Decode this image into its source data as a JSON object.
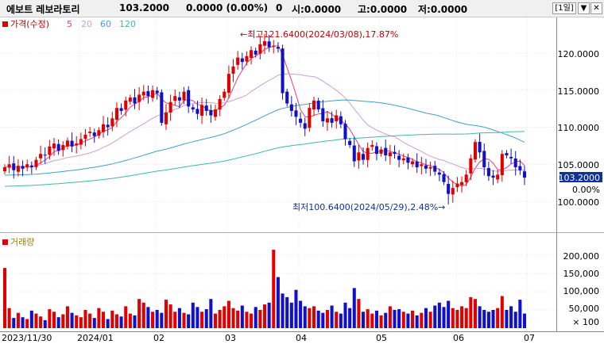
{
  "header": {
    "name": "에보트 레보라토리",
    "price": "103.2000",
    "change": "0.0000 (0.00%)",
    "volume": "0",
    "open": "시:0.0000",
    "high": "고:0.0000",
    "low": "저:0.0000",
    "period_button": "[1일]",
    "minimize_label": "▼",
    "close_label": "✕"
  },
  "legend": {
    "price_label": "가격(수정)",
    "ma": [
      {
        "label": "5",
        "color": "#e0407a"
      },
      {
        "label": "20",
        "color": "#c8a0d8"
      },
      {
        "label": "60",
        "color": "#40a0c8"
      },
      {
        "label": "120",
        "color": "#40b8a8"
      }
    ],
    "volume_label": "거래량"
  },
  "colors": {
    "up": "#e00000",
    "down": "#1010c8",
    "highlight": "#1030a0"
  },
  "annotations": {
    "max": "←최고121.6400(2024/03/08),17.87%",
    "min": "최저100.6400(2024/05/29),2.48%→"
  },
  "price_axis": {
    "ticks": [
      "120.0000",
      "115.0000",
      "110.0000",
      "105.0000",
      "100.0000"
    ]
  },
  "volume_axis": {
    "ticks": [
      "200,000",
      "150,000",
      "100,000",
      "50,000"
    ],
    "unit": "× 100"
  },
  "last_price_box": {
    "price": "103.2000",
    "percent": "0.00%"
  },
  "x_axis": {
    "labels": [
      "2023/11/30",
      "2024/01",
      "02",
      "03",
      "04",
      "05",
      "06",
      "07"
    ]
  },
  "chart_data": {
    "type": "candlestick",
    "period": "daily",
    "price_range": [
      96,
      124
    ],
    "volume_range": [
      0,
      240000
    ],
    "volume_unit": "x100",
    "moving_averages": [
      5,
      20,
      60,
      120
    ],
    "highest": {
      "value": 121.64,
      "date": "2024/03/08",
      "pct": 17.87
    },
    "lowest": {
      "value": 100.64,
      "date": "2024/05/29",
      "pct": 2.48
    },
    "last": 103.2,
    "close_series": [
      104.6,
      105.0,
      104.2,
      104.8,
      104.4,
      105.0,
      104.6,
      105.6,
      106.4,
      106.2,
      107.4,
      107.8,
      106.8,
      107.6,
      108.2,
      107.4,
      107.8,
      108.4,
      109.0,
      109.4,
      108.8,
      109.6,
      110.4,
      110.0,
      111.2,
      112.6,
      112.2,
      113.6,
      114.0,
      113.2,
      114.4,
      114.8,
      114.2,
      115.0,
      114.6,
      110.6,
      112.0,
      113.4,
      114.2,
      113.6,
      114.8,
      112.8,
      112.4,
      111.8,
      113.0,
      112.2,
      111.6,
      112.4,
      113.8,
      114.8,
      117.2,
      118.2,
      119.4,
      118.8,
      119.6,
      120.4,
      119.8,
      121.2,
      121.6,
      120.8,
      121.0,
      120.6,
      114.6,
      113.2,
      112.2,
      111.4,
      110.6,
      109.8,
      112.6,
      113.6,
      112.4,
      110.8,
      111.2,
      110.6,
      111.6,
      110.4,
      108.4,
      107.6,
      105.4,
      106.6,
      105.6,
      107.2,
      107.6,
      106.4,
      107.0,
      106.2,
      106.6,
      106.4,
      105.6,
      105.8,
      105.2,
      105.4,
      104.6,
      105.0,
      104.4,
      104.6,
      104.0,
      103.6,
      102.6,
      101.0,
      101.8,
      102.4,
      102.6,
      103.6,
      105.8,
      108.0,
      106.6,
      104.6,
      103.4,
      103.2,
      103.6,
      106.4,
      106.2,
      105.8,
      104.6,
      104.2,
      103.2
    ],
    "volume_series": [
      165000,
      55000,
      28000,
      42000,
      30000,
      25000,
      48000,
      40000,
      32000,
      22000,
      52000,
      45000,
      30000,
      38000,
      60000,
      42000,
      35000,
      30000,
      50000,
      40000,
      28000,
      55000,
      45000,
      25000,
      48000,
      38000,
      32000,
      60000,
      40000,
      35000,
      80000,
      70000,
      58000,
      45000,
      50000,
      42000,
      78000,
      65000,
      45000,
      55000,
      42000,
      38000,
      70000,
      58000,
      45000,
      52000,
      80000,
      40000,
      50000,
      60000,
      75000,
      55000,
      48000,
      62000,
      45000,
      40000,
      58000,
      50000,
      65000,
      70000,
      215000,
      140000,
      95000,
      85000,
      70000,
      105000,
      75000,
      60000,
      55000,
      60000,
      48000,
      42000,
      50000,
      62000,
      45000,
      40000,
      70000,
      55000,
      110000,
      80000,
      45000,
      52000,
      40000,
      48000,
      35000,
      42000,
      60000,
      50000,
      52000,
      45000,
      40000,
      48000,
      35000,
      42000,
      55000,
      45000,
      62000,
      70000,
      58000,
      75000,
      55000,
      50000,
      60000,
      55000,
      85000,
      80000,
      60000,
      50000,
      45000,
      50000,
      55000,
      88000,
      50000,
      60000,
      45000,
      78000,
      40000
    ]
  }
}
